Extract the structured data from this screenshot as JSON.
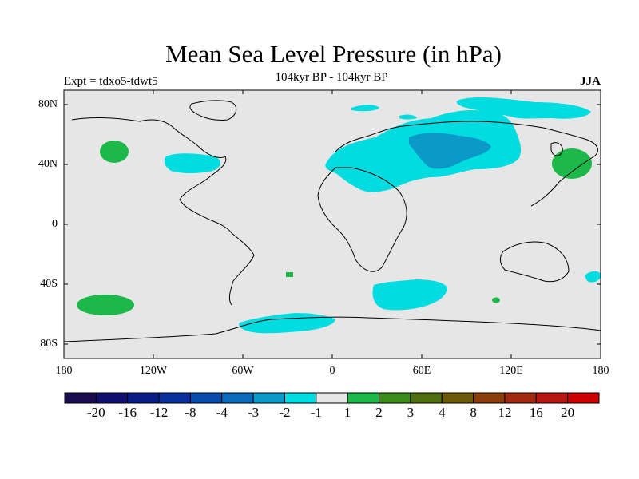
{
  "title": "Mean Sea Level Pressure (in hPa)",
  "subtitle": "104kyr BP - 104kyr BP",
  "experiment": "Expt = tdxo5-tdwt5",
  "season": "JJA",
  "lat_labels": [
    "80N",
    "40N",
    "0",
    "40S",
    "80S"
  ],
  "lon_labels": [
    "180",
    "120W",
    "60W",
    "0",
    "60E",
    "120E",
    "180"
  ],
  "colorbar": {
    "labels": [
      "-20",
      "-16",
      "-12",
      "-8",
      "-4",
      "-3",
      "-2",
      "-1",
      "1",
      "2",
      "3",
      "4",
      "8",
      "12",
      "16",
      "20"
    ],
    "colors": [
      "#1a0d4f",
      "#0f0f6e",
      "#0a1c86",
      "#0a2e9a",
      "#0a4aa8",
      "#0d6ab8",
      "#0b9ac8",
      "#00dce0",
      "#e6e6e6",
      "#1db84a",
      "#3b8c1c",
      "#4f6e10",
      "#6a5a0a",
      "#8a3e0c",
      "#a02a10",
      "#b61612",
      "#cc0000"
    ]
  },
  "colors": {
    "background": "#e6e6e6",
    "negative_1_2": "#00dce0",
    "negative_2_3": "#0b9ac8",
    "positive_1_2": "#1db84a"
  }
}
